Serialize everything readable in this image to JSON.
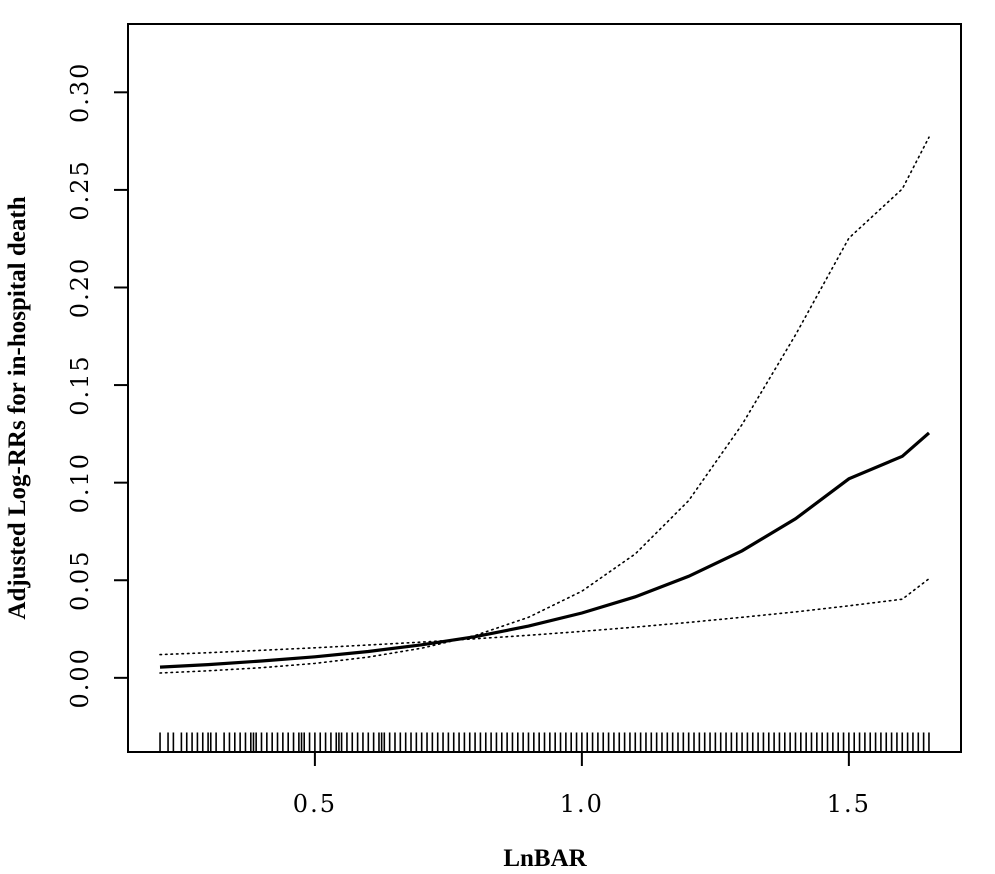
{
  "chart_data": {
    "type": "line",
    "title": "",
    "xlabel": "LnBAR",
    "ylabel": "Adjusted Log-RRs for  in-hospital death",
    "xlim": [
      0.15,
      1.71
    ],
    "ylim": [
      -0.038,
      0.335
    ],
    "x_ticks": [
      0.5,
      1.0,
      1.5
    ],
    "x_tick_labels": [
      "0.5",
      "1.0",
      "1.5"
    ],
    "y_ticks": [
      0.0,
      0.05,
      0.1,
      0.15,
      0.2,
      0.25,
      0.3
    ],
    "y_tick_labels": [
      "0.00",
      "0.05",
      "0.10",
      "0.15",
      "0.20",
      "0.25",
      "0.30"
    ],
    "grid": false,
    "legend": "none",
    "series": [
      {
        "style": "solid",
        "x": [
          0.21,
          0.3,
          0.4,
          0.5,
          0.6,
          0.7,
          0.8,
          0.9,
          1.0,
          1.1,
          1.2,
          1.3,
          1.4,
          1.5,
          1.6,
          1.65
        ],
        "y": [
          0.0055,
          0.0068,
          0.0086,
          0.0108,
          0.0135,
          0.0169,
          0.0211,
          0.0265,
          0.0332,
          0.0415,
          0.052,
          0.0651,
          0.0815,
          0.102,
          0.1135,
          0.1255
        ]
      },
      {
        "style": "dotted",
        "x": [
          0.21,
          0.3,
          0.4,
          0.5,
          0.6,
          0.7,
          0.8,
          0.9,
          1.0,
          1.1,
          1.2,
          1.3,
          1.4,
          1.5,
          1.6,
          1.65
        ],
        "y": [
          0.0025,
          0.0036,
          0.0052,
          0.0074,
          0.0106,
          0.0152,
          0.0217,
          0.031,
          0.0444,
          0.0635,
          0.0908,
          0.1298,
          0.1757,
          0.2253,
          0.2505,
          0.277
        ]
      },
      {
        "style": "dotted",
        "x": [
          0.21,
          0.3,
          0.4,
          0.5,
          0.6,
          0.7,
          0.8,
          0.9,
          1.0,
          1.1,
          1.2,
          1.3,
          1.4,
          1.5,
          1.6,
          1.65
        ],
        "y": [
          0.0119,
          0.0129,
          0.0141,
          0.0154,
          0.0168,
          0.0183,
          0.02,
          0.0218,
          0.0238,
          0.026,
          0.0284,
          0.031,
          0.0338,
          0.0369,
          0.0403,
          0.0508
        ]
      }
    ],
    "rug_x": [
      0.21,
      0.225,
      0.235,
      0.25,
      0.26,
      0.27,
      0.28,
      0.29,
      0.3,
      0.305,
      0.315,
      0.33,
      0.34,
      0.35,
      0.36,
      0.37,
      0.38,
      0.385,
      0.39,
      0.4,
      0.41,
      0.42,
      0.43,
      0.44,
      0.45,
      0.46,
      0.47,
      0.475,
      0.48,
      0.49,
      0.5,
      0.51,
      0.52,
      0.53,
      0.54,
      0.545,
      0.55,
      0.56,
      0.57,
      0.58,
      0.59,
      0.6,
      0.61,
      0.62,
      0.625,
      0.63,
      0.64,
      0.65,
      0.66,
      0.67,
      0.68,
      0.69,
      0.7,
      0.71,
      0.72,
      0.73,
      0.74,
      0.75,
      0.76,
      0.77,
      0.78,
      0.79,
      0.8,
      0.81,
      0.82,
      0.83,
      0.84,
      0.85,
      0.86,
      0.87,
      0.88,
      0.89,
      0.9,
      0.91,
      0.92,
      0.93,
      0.94,
      0.95,
      0.96,
      0.97,
      0.98,
      0.99,
      1.0,
      1.01,
      1.02,
      1.03,
      1.04,
      1.05,
      1.06,
      1.07,
      1.08,
      1.09,
      1.1,
      1.11,
      1.12,
      1.13,
      1.14,
      1.15,
      1.16,
      1.17,
      1.18,
      1.19,
      1.2,
      1.21,
      1.22,
      1.23,
      1.24,
      1.25,
      1.26,
      1.27,
      1.28,
      1.29,
      1.3,
      1.31,
      1.32,
      1.33,
      1.34,
      1.35,
      1.36,
      1.37,
      1.38,
      1.39,
      1.4,
      1.41,
      1.42,
      1.43,
      1.44,
      1.45,
      1.46,
      1.47,
      1.48,
      1.49,
      1.5,
      1.51,
      1.52,
      1.53,
      1.54,
      1.55,
      1.56,
      1.57,
      1.58,
      1.59,
      1.6,
      1.61,
      1.62,
      1.63,
      1.64,
      1.65
    ]
  }
}
